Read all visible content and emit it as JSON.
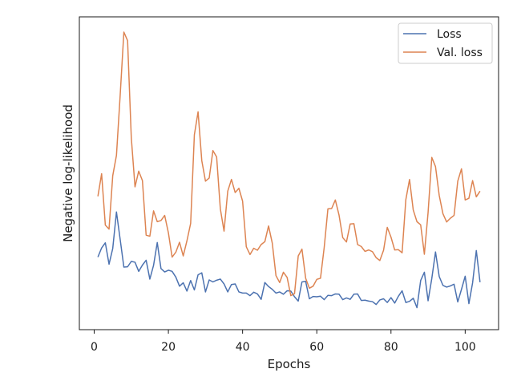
{
  "chart_data": {
    "type": "line",
    "title": "",
    "xlabel": "Epochs",
    "ylabel": "Negative log-likelihood",
    "xlim": [
      -4,
      109
    ],
    "xticks": [
      "0",
      "20",
      "40",
      "60",
      "80",
      "100"
    ],
    "xtick_values": [
      0,
      20,
      40,
      60,
      80,
      100
    ],
    "ylim": [
      0,
      1
    ],
    "yticks_visible": false,
    "grid": false,
    "legend": "top-right",
    "colors": {
      "Loss": "#4c72b0",
      "Val. loss": "#dd8452",
      "axes": "#1a1a1a"
    },
    "x": [
      1,
      2,
      3,
      4,
      5,
      6,
      7,
      8,
      9,
      10,
      11,
      12,
      13,
      14,
      15,
      16,
      17,
      18,
      19,
      20,
      21,
      22,
      23,
      24,
      25,
      26,
      27,
      28,
      29,
      30,
      31,
      32,
      33,
      34,
      35,
      36,
      37,
      38,
      39,
      40,
      41,
      42,
      43,
      44,
      45,
      46,
      47,
      48,
      49,
      50,
      51,
      52,
      53,
      54,
      55,
      56,
      57,
      58,
      59,
      60,
      61,
      62,
      63,
      64,
      65,
      66,
      67,
      68,
      69,
      70,
      71,
      72,
      73,
      74,
      75,
      76,
      77,
      78,
      79,
      80,
      81,
      82,
      83,
      84,
      85,
      86,
      87,
      88,
      89,
      90,
      91,
      92,
      93,
      94,
      95,
      96,
      97,
      98,
      99,
      100,
      101,
      102,
      103,
      104
    ],
    "series": [
      {
        "name": "Loss",
        "values": [
          0.212,
          0.244,
          0.262,
          0.187,
          0.242,
          0.37,
          0.274,
          0.177,
          0.178,
          0.197,
          0.194,
          0.162,
          0.184,
          0.201,
          0.135,
          0.183,
          0.263,
          0.172,
          0.16,
          0.166,
          0.162,
          0.142,
          0.11,
          0.122,
          0.093,
          0.13,
          0.097,
          0.15,
          0.157,
          0.09,
          0.132,
          0.125,
          0.131,
          0.135,
          0.118,
          0.09,
          0.116,
          0.118,
          0.09,
          0.086,
          0.086,
          0.077,
          0.089,
          0.083,
          0.064,
          0.123,
          0.109,
          0.099,
          0.086,
          0.09,
          0.082,
          0.094,
          0.093,
          0.073,
          0.058,
          0.125,
          0.127,
          0.066,
          0.074,
          0.073,
          0.075,
          0.063,
          0.078,
          0.077,
          0.083,
          0.082,
          0.063,
          0.069,
          0.064,
          0.082,
          0.083,
          0.06,
          0.061,
          0.058,
          0.056,
          0.046,
          0.062,
          0.066,
          0.053,
          0.07,
          0.051,
          0.075,
          0.094,
          0.053,
          0.057,
          0.068,
          0.035,
          0.13,
          0.159,
          0.059,
          0.137,
          0.23,
          0.144,
          0.113,
          0.107,
          0.111,
          0.117,
          0.055,
          0.099,
          0.145,
          0.049,
          0.122,
          0.235,
          0.124
        ]
      },
      {
        "name": "Val. loss",
        "values": [
          0.425,
          0.504,
          0.324,
          0.31,
          0.497,
          0.568,
          0.778,
          1.0,
          0.97,
          0.63,
          0.458,
          0.513,
          0.48,
          0.289,
          0.285,
          0.374,
          0.336,
          0.34,
          0.358,
          0.297,
          0.212,
          0.229,
          0.264,
          0.216,
          0.269,
          0.33,
          0.64,
          0.721,
          0.55,
          0.478,
          0.489,
          0.585,
          0.563,
          0.381,
          0.303,
          0.443,
          0.484,
          0.438,
          0.453,
          0.408,
          0.248,
          0.221,
          0.243,
          0.236,
          0.256,
          0.266,
          0.321,
          0.261,
          0.147,
          0.123,
          0.159,
          0.141,
          0.077,
          0.084,
          0.216,
          0.24,
          0.138,
          0.103,
          0.11,
          0.134,
          0.138,
          0.246,
          0.381,
          0.382,
          0.412,
          0.359,
          0.28,
          0.265,
          0.328,
          0.329,
          0.256,
          0.249,
          0.232,
          0.237,
          0.231,
          0.21,
          0.2,
          0.236,
          0.316,
          0.282,
          0.237,
          0.238,
          0.227,
          0.413,
          0.484,
          0.377,
          0.336,
          0.325,
          0.222,
          0.368,
          0.561,
          0.529,
          0.428,
          0.364,
          0.335,
          0.348,
          0.358,
          0.478,
          0.521,
          0.412,
          0.418,
          0.48,
          0.423,
          0.443
        ]
      }
    ]
  }
}
